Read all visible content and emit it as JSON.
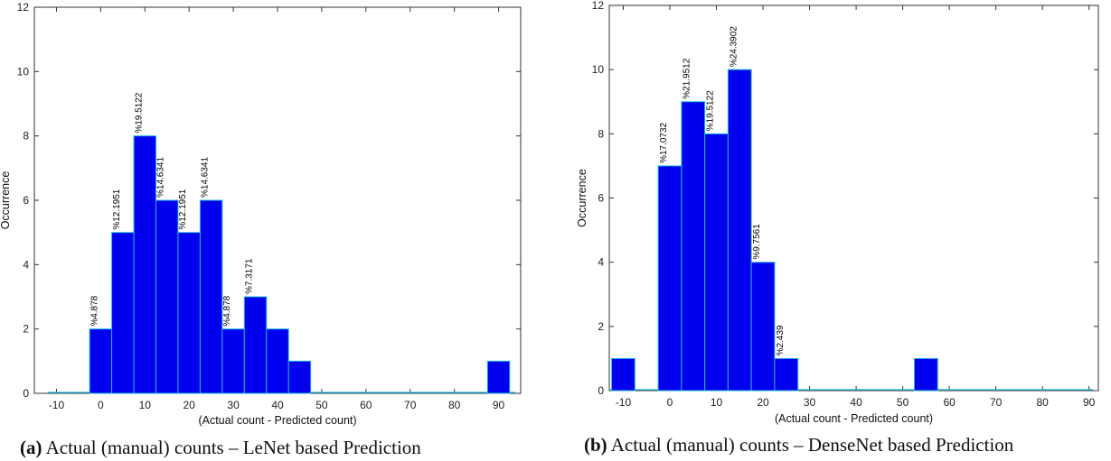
{
  "captions": [
    {
      "tag": "(a)",
      "text": "Actual (manual) counts – LeNet based Prediction"
    },
    {
      "tag": "(b)",
      "text": "Actual (manual) counts – DenseNet based Prediction"
    }
  ],
  "chart_data": [
    {
      "type": "bar",
      "xlabel": "(Actual count - Predicted count)",
      "ylabel": "Occurrence",
      "xlim": [
        -15,
        95
      ],
      "ylim": [
        0,
        12
      ],
      "xticks": [
        -10,
        0,
        10,
        20,
        30,
        40,
        50,
        60,
        70,
        80,
        90
      ],
      "yticks": [
        0,
        2,
        4,
        6,
        8,
        10,
        12
      ],
      "bin_width": 5,
      "bars": [
        {
          "center": 0,
          "value": 2,
          "label": "%4.878"
        },
        {
          "center": 5,
          "value": 5,
          "label": "%12.1951"
        },
        {
          "center": 10,
          "value": 8,
          "label": "%19.5122"
        },
        {
          "center": 15,
          "value": 6,
          "label": "%14.6341"
        },
        {
          "center": 20,
          "value": 5,
          "label": "%12.1951"
        },
        {
          "center": 25,
          "value": 6,
          "label": "%14.6341"
        },
        {
          "center": 30,
          "value": 2,
          "label": "%4.878"
        },
        {
          "center": 35,
          "value": 3,
          "label": "%7.3171"
        },
        {
          "center": 40,
          "value": 2,
          "label": ""
        },
        {
          "center": 45,
          "value": 1,
          "label": ""
        },
        {
          "center": 90,
          "value": 1,
          "label": ""
        }
      ],
      "colors": {
        "bar": "#0000ee",
        "edge": "#1fb8e0",
        "baseline": "#1fb8e0"
      }
    },
    {
      "type": "bar",
      "xlabel": "(Actual count - Predicted count)",
      "ylabel": "Occurrence",
      "xlim": [
        -13,
        92
      ],
      "ylim": [
        0,
        12
      ],
      "xticks": [
        -10,
        0,
        10,
        20,
        30,
        40,
        50,
        60,
        70,
        80,
        90
      ],
      "yticks": [
        0,
        2,
        4,
        6,
        8,
        10,
        12
      ],
      "bin_width": 5,
      "bars": [
        {
          "center": -10,
          "value": 1,
          "label": ""
        },
        {
          "center": 0,
          "value": 7,
          "label": "%17.0732"
        },
        {
          "center": 5,
          "value": 9,
          "label": "%21.9512"
        },
        {
          "center": 10,
          "value": 8,
          "label": "%19.5122"
        },
        {
          "center": 15,
          "value": 10,
          "label": "%24.3902"
        },
        {
          "center": 20,
          "value": 4,
          "label": "%9.7561"
        },
        {
          "center": 25,
          "value": 1,
          "label": "%2.439"
        },
        {
          "center": 55,
          "value": 1,
          "label": ""
        }
      ],
      "colors": {
        "bar": "#0000ee",
        "edge": "#1fb8e0",
        "baseline": "#1fb8e0"
      }
    }
  ]
}
